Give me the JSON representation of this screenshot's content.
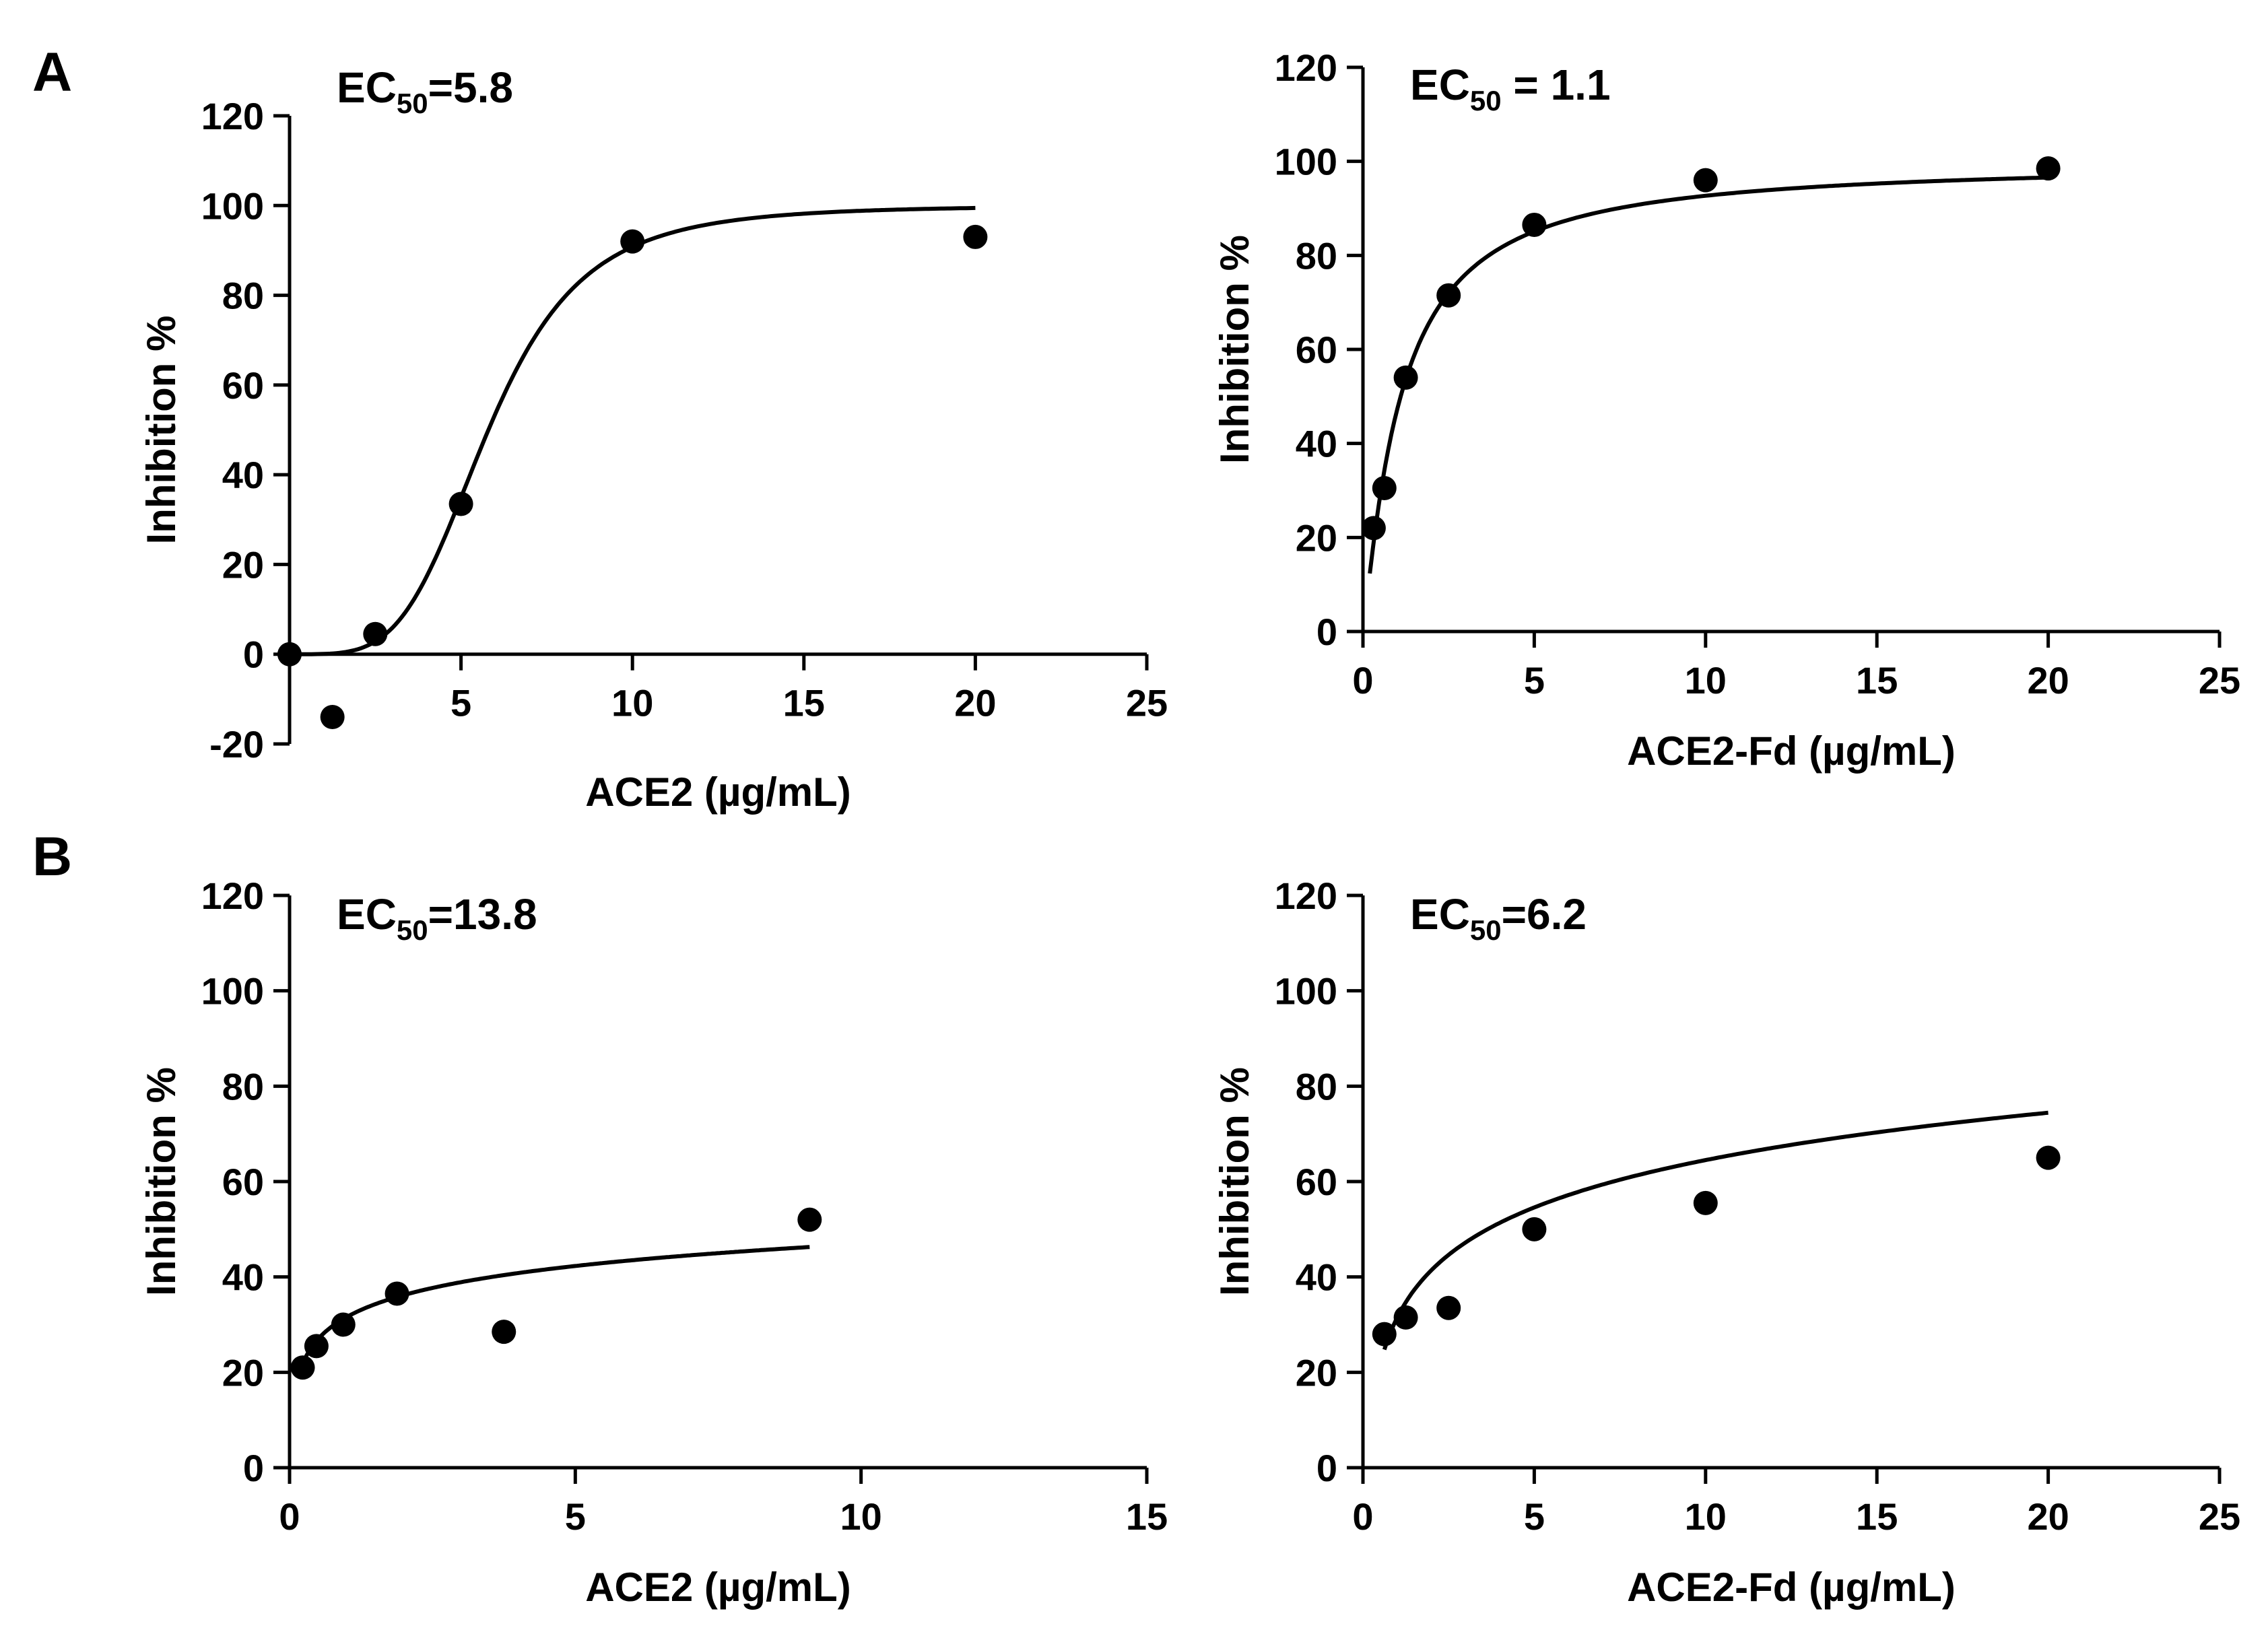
{
  "figure": {
    "panel_labels": [
      "A",
      "B"
    ]
  },
  "chart_data": [
    {
      "type": "scatter",
      "panel": "A",
      "annotation": {
        "main": "EC",
        "sub": "50",
        "value": "=5.8"
      },
      "xlabel": "ACE2 (µg/mL)",
      "ylabel": "Inhibition %",
      "xlim": [
        0,
        25
      ],
      "ylim": [
        -20,
        120
      ],
      "xticks": [
        5,
        10,
        15,
        20,
        25
      ],
      "yticks": [
        -20,
        0,
        20,
        40,
        60,
        80,
        100,
        120
      ],
      "points": [
        {
          "x": 0,
          "y": 0
        },
        {
          "x": 1.25,
          "y": -14
        },
        {
          "x": 2.5,
          "y": 4.5
        },
        {
          "x": 5,
          "y": 33.5
        },
        {
          "x": 10,
          "y": 92
        },
        {
          "x": 20,
          "y": 93
        }
      ],
      "fit": {
        "model": "hill",
        "ec50": 5.8,
        "hill": 4.2,
        "top": 100,
        "bottom": 0,
        "xmin": 0,
        "xmax": 20
      }
    },
    {
      "type": "scatter",
      "panel": "A",
      "annotation": {
        "main": "EC",
        "sub": "50",
        "value": " = 1.1"
      },
      "xlabel": "ACE2-Fd (µg/mL)",
      "ylabel": "Inhibition %",
      "xlim": [
        0,
        25
      ],
      "ylim": [
        0,
        120
      ],
      "xticks": [
        0,
        5,
        10,
        15,
        20,
        25
      ],
      "yticks": [
        0,
        20,
        40,
        60,
        80,
        100,
        120
      ],
      "points": [
        {
          "x": 0.3125,
          "y": 22
        },
        {
          "x": 0.625,
          "y": 30.5
        },
        {
          "x": 1.25,
          "y": 54
        },
        {
          "x": 2.5,
          "y": 71.5
        },
        {
          "x": 5,
          "y": 86.5
        },
        {
          "x": 10,
          "y": 96
        },
        {
          "x": 20,
          "y": 98.5
        }
      ],
      "fit": {
        "model": "hill",
        "ec50": 1.1,
        "hill": 1.15,
        "top": 100,
        "bottom": 0,
        "xmin": 0.2,
        "xmax": 20
      }
    },
    {
      "type": "scatter",
      "panel": "B",
      "annotation": {
        "main": "EC",
        "sub": "50",
        "value": "=13.8"
      },
      "xlabel": "ACE2 (µg/mL)",
      "ylabel": "Inhibition %",
      "xlim": [
        0,
        15
      ],
      "ylim": [
        0,
        120
      ],
      "xticks": [
        0,
        5,
        10,
        15
      ],
      "yticks": [
        0,
        20,
        40,
        60,
        80,
        100,
        120
      ],
      "points": [
        {
          "x": 0.23,
          "y": 21
        },
        {
          "x": 0.47,
          "y": 25.5
        },
        {
          "x": 0.94,
          "y": 30
        },
        {
          "x": 1.88,
          "y": 36.5
        },
        {
          "x": 3.75,
          "y": 28.5
        },
        {
          "x": 9.1,
          "y": 52
        }
      ],
      "fit": {
        "model": "log",
        "a": 31.6,
        "b": 15.3,
        "xmin": 0.23,
        "xmax": 9.1
      }
    },
    {
      "type": "scatter",
      "panel": "B",
      "annotation": {
        "main": "EC",
        "sub": "50",
        "value": "=6.2"
      },
      "xlabel": "ACE2-Fd (µg/mL)",
      "ylabel": "Inhibition %",
      "xlim": [
        0,
        25
      ],
      "ylim": [
        0,
        120
      ],
      "xticks": [
        0,
        5,
        10,
        15,
        20,
        25
      ],
      "yticks": [
        0,
        20,
        40,
        60,
        80,
        100,
        120
      ],
      "points": [
        {
          "x": 0.625,
          "y": 28
        },
        {
          "x": 1.25,
          "y": 31.5
        },
        {
          "x": 2.5,
          "y": 33.5
        },
        {
          "x": 5,
          "y": 50
        },
        {
          "x": 10,
          "y": 55.5
        },
        {
          "x": 20,
          "y": 65
        }
      ],
      "fit": {
        "model": "log",
        "a": 31.5,
        "b": 33.0,
        "xmin": 0.625,
        "xmax": 20
      }
    }
  ]
}
